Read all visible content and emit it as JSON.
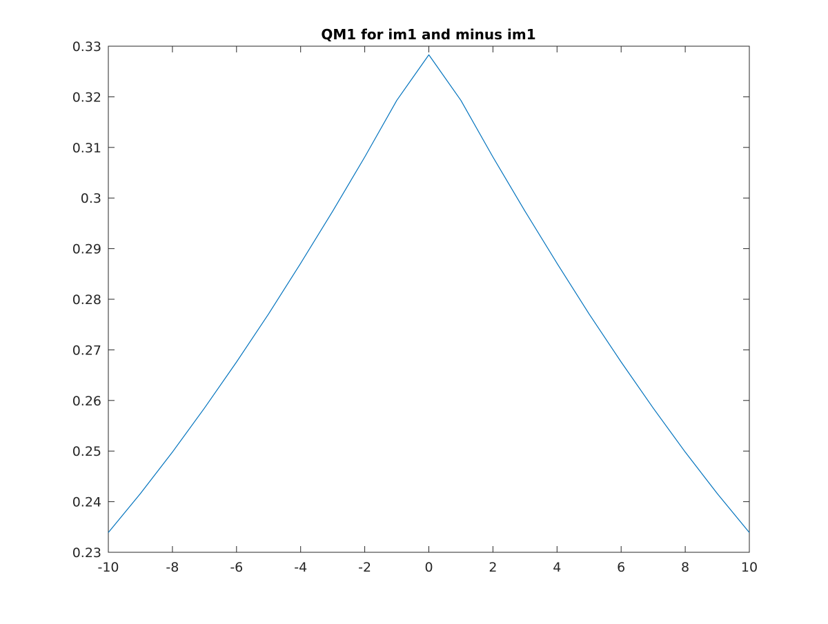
{
  "chart_data": {
    "type": "line",
    "title": "QM1 for im1 and minus im1",
    "xlabel": "",
    "ylabel": "",
    "xlim": [
      -10,
      10
    ],
    "ylim": [
      0.23,
      0.33
    ],
    "xticks": [
      -10,
      -8,
      -6,
      -4,
      -2,
      0,
      2,
      4,
      6,
      8,
      10
    ],
    "xtick_labels": [
      "-10",
      "-8",
      "-6",
      "-4",
      "-2",
      "0",
      "2",
      "4",
      "6",
      "8",
      "10"
    ],
    "yticks": [
      0.23,
      0.24,
      0.25,
      0.26,
      0.27,
      0.28,
      0.29,
      0.3,
      0.31,
      0.32,
      0.33
    ],
    "ytick_labels": [
      "0.23",
      "0.24",
      "0.25",
      "0.26",
      "0.27",
      "0.28",
      "0.29",
      "0.3",
      "0.31",
      "0.32",
      "0.33"
    ],
    "grid": false,
    "series": [
      {
        "color": "#0072BD",
        "x": [
          -10,
          -9,
          -8,
          -7,
          -6,
          -5,
          -4,
          -3,
          -2,
          -1,
          0,
          1,
          2,
          3,
          4,
          5,
          6,
          7,
          8,
          9,
          10
        ],
        "y": [
          0.2339,
          0.2416,
          0.2498,
          0.2585,
          0.2676,
          0.2771,
          0.2871,
          0.2974,
          0.3081,
          0.3193,
          0.3283,
          0.3193,
          0.3081,
          0.2974,
          0.2871,
          0.2771,
          0.2676,
          0.2585,
          0.2498,
          0.2416,
          0.2339
        ]
      }
    ]
  }
}
